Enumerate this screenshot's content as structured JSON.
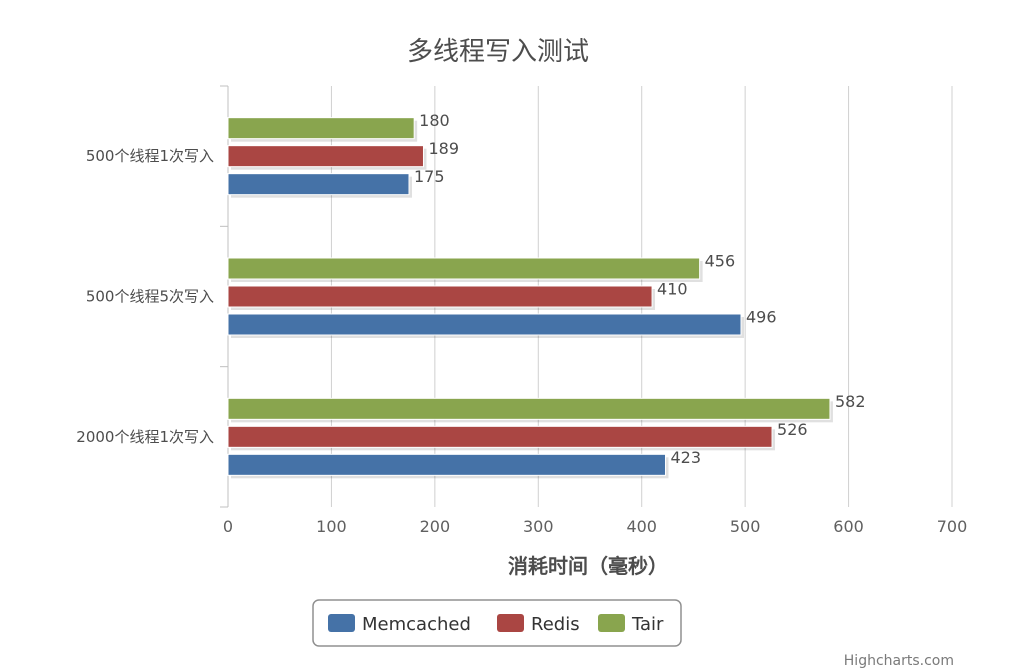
{
  "chart_data": {
    "type": "bar",
    "orientation": "horizontal",
    "title": "多线程写入测试",
    "xlabel": "消耗时间（毫秒）",
    "ylabel": "",
    "categories": [
      "500个线程1次写入",
      "500个线程5次写入",
      "2000个线程1次写入"
    ],
    "series": [
      {
        "name": "Memcached",
        "color": "#4572a7",
        "values": [
          175,
          496,
          423
        ]
      },
      {
        "name": "Redis",
        "color": "#aa4643",
        "values": [
          189,
          410,
          526
        ]
      },
      {
        "name": "Tair",
        "color": "#89a54e",
        "values": [
          180,
          456,
          582
        ]
      }
    ],
    "xlim": [
      0,
      700
    ],
    "ticks": [
      "0",
      "100",
      "200",
      "300",
      "400",
      "500",
      "600",
      "700"
    ],
    "grid": true,
    "legend_position": "bottom-center",
    "data_labels": true
  },
  "credit": "Highcharts.com"
}
